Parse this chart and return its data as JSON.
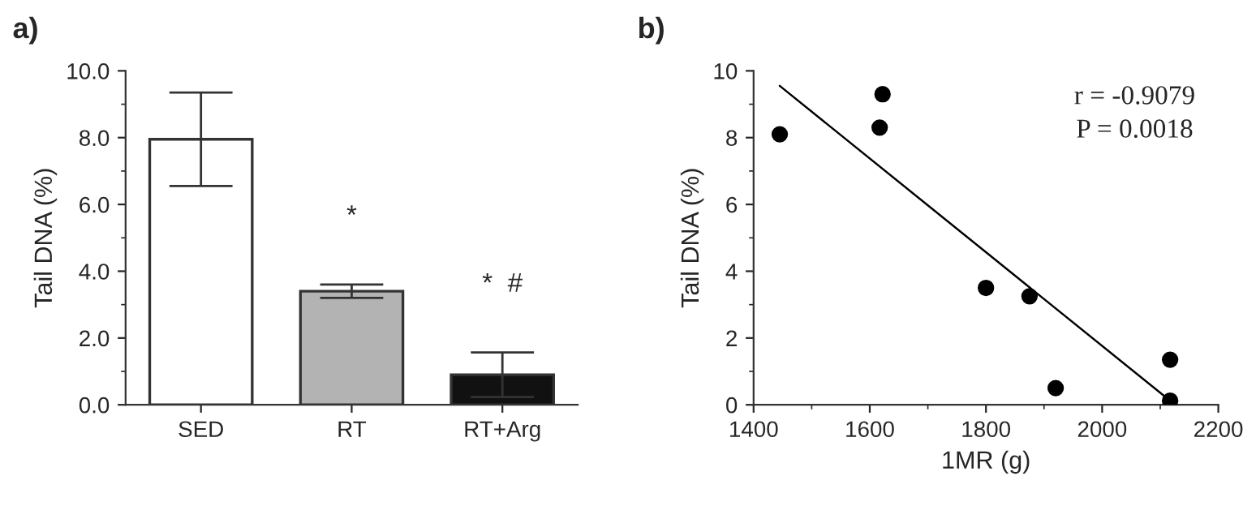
{
  "chart_data": [
    {
      "type": "bar",
      "title": "a)",
      "ylabel": "Tail DNA (%)",
      "categories": [
        "SED",
        "RT",
        "RT+Arg"
      ],
      "values": [
        7.95,
        3.4,
        0.9
      ],
      "colors": [
        "#ffffff",
        "#b3b3b3",
        "#111111"
      ],
      "errors": [
        1.4,
        0.2,
        0.67
      ],
      "ylim": [
        0,
        10
      ],
      "yticks": [
        {
          "value": 0,
          "label": "0.0"
        },
        {
          "value": 2,
          "label": "2.0"
        },
        {
          "value": 4,
          "label": "4.0"
        },
        {
          "value": 6,
          "label": "6.0"
        },
        {
          "value": 8,
          "label": "8.0"
        },
        {
          "value": 10,
          "label": "10.0"
        }
      ],
      "annotations": [
        "*",
        "*  #"
      ],
      "grid": false
    },
    {
      "type": "scatter",
      "title": "b)",
      "xlabel": "1MR (g)",
      "ylabel": "Tail DNA (%)",
      "series": [
        {
          "type": "scatter",
          "marker": "circle",
          "color": "#000000",
          "x": [
            1445,
            1617,
            1622,
            1800,
            1875,
            1920,
            2117,
            2117
          ],
          "values": [
            8.1,
            8.3,
            9.3,
            3.5,
            3.25,
            0.5,
            1.35,
            0.12
          ]
        },
        {
          "type": "line",
          "color": "#000000",
          "x": [
            1445,
            2115
          ],
          "values": [
            9.55,
            0.15
          ]
        }
      ],
      "xlim": [
        1400,
        2200
      ],
      "xticks": [
        1400,
        1600,
        1800,
        2000,
        2200
      ],
      "ylim": [
        0,
        10
      ],
      "yticks": [
        0,
        2,
        4,
        6,
        8,
        10
      ],
      "annotations": [
        "r = -0.9079",
        "P = 0.0018"
      ],
      "grid": false
    }
  ]
}
